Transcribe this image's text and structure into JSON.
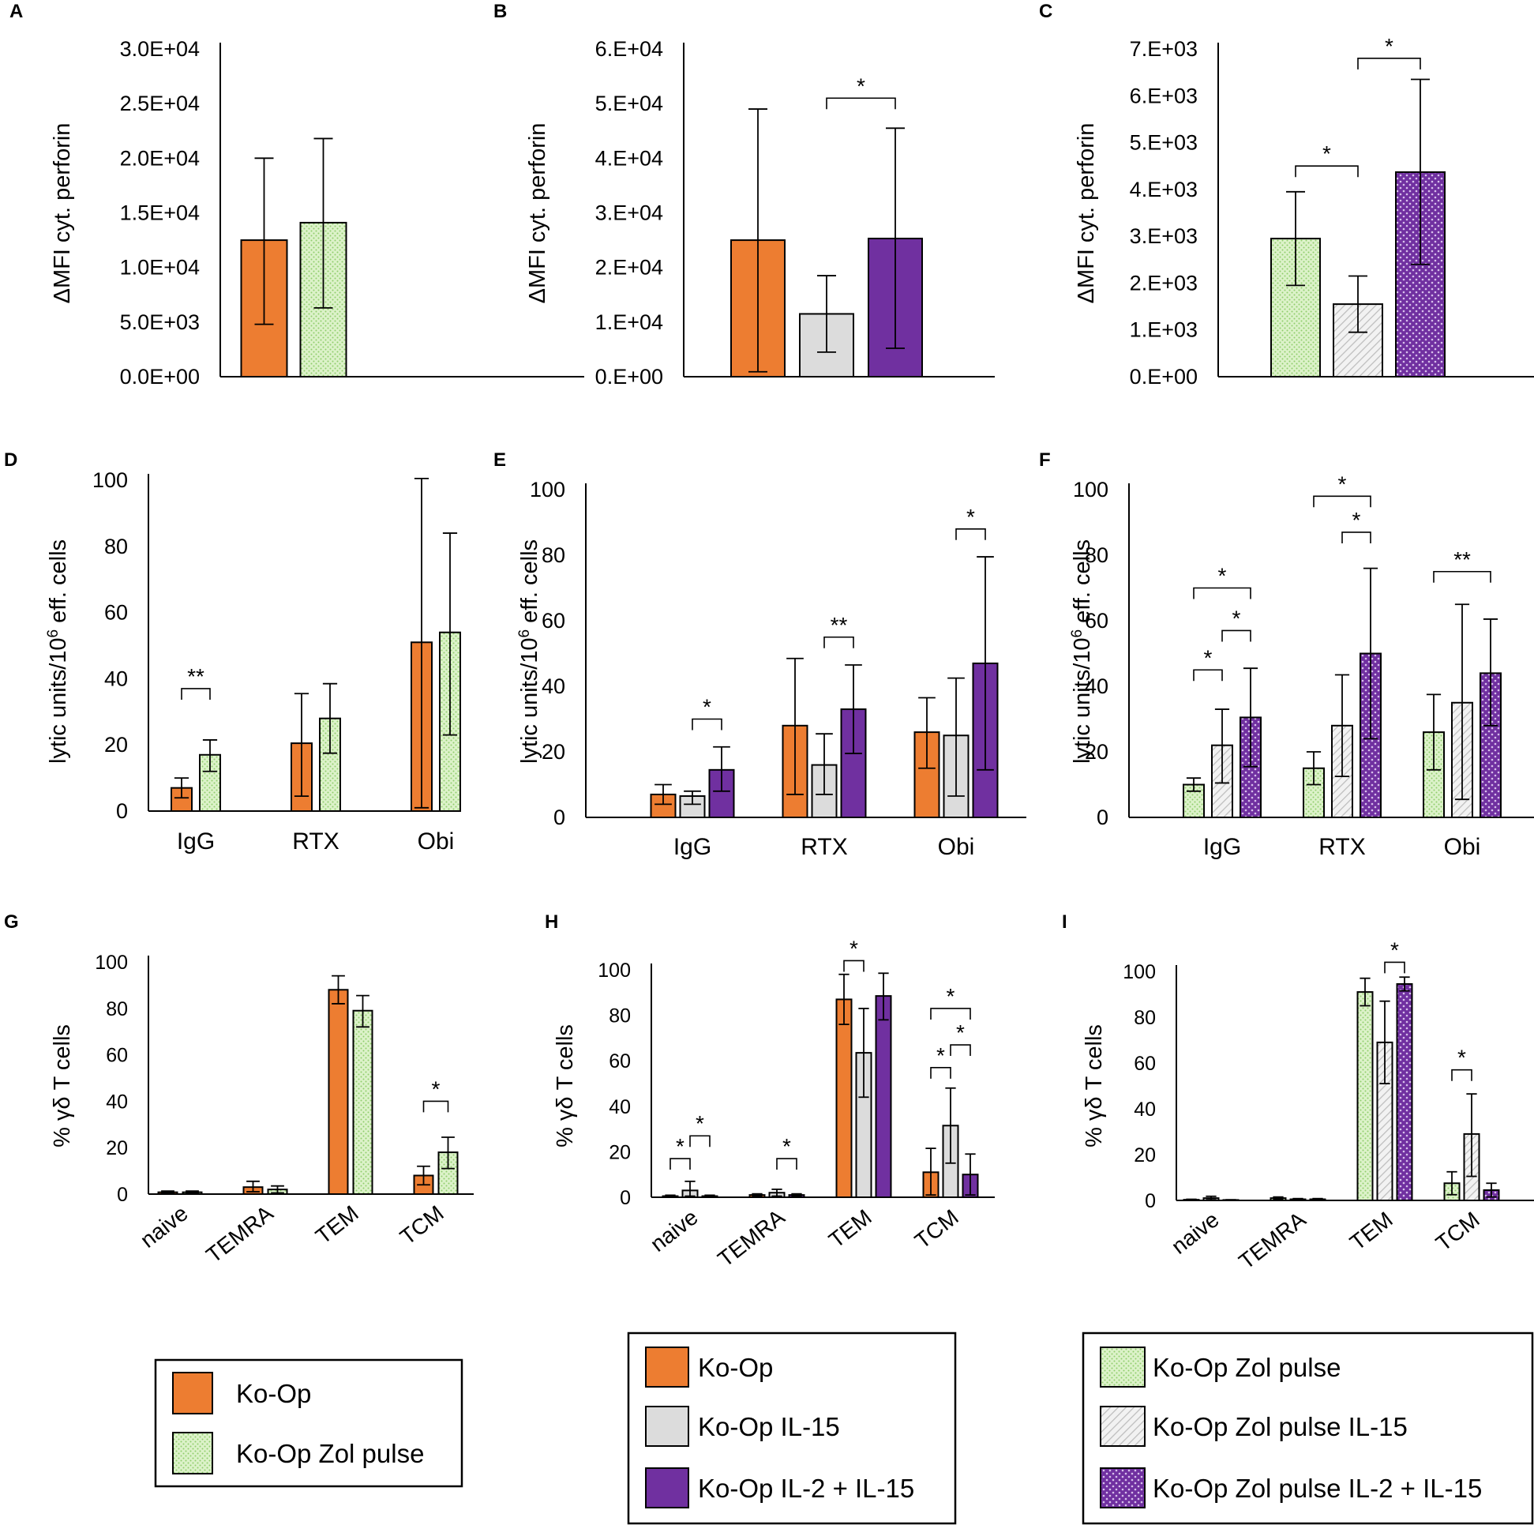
{
  "series_styles": {
    "ko_op": {
      "color": "#ed7d31",
      "pattern": "solid"
    },
    "ko_op_zol": {
      "color": "#d6f0c2",
      "pattern": "green-dots"
    },
    "ko_op_il15": {
      "color": "#dcdcdc",
      "pattern": "solid"
    },
    "ko_op_il2_il15": {
      "color": "#7030a0",
      "pattern": "solid"
    },
    "ko_op_zol_il15": {
      "color": "#e6e6e6",
      "pattern": "grey-diag"
    },
    "ko_op_zol_il2_il15": {
      "color": "#7030a0",
      "pattern": "purple-cross"
    }
  },
  "legends": [
    {
      "items": [
        {
          "label": "Ko-Op",
          "style": "ko_op"
        },
        {
          "label": "Ko-Op Zol pulse",
          "style": "ko_op_zol"
        }
      ]
    },
    {
      "items": [
        {
          "label": "Ko-Op",
          "style": "ko_op"
        },
        {
          "label": "Ko-Op IL-15",
          "style": "ko_op_il15"
        },
        {
          "label": "Ko-Op IL-2 + IL-15",
          "style": "ko_op_il2_il15"
        }
      ]
    },
    {
      "items": [
        {
          "label": "Ko-Op Zol pulse",
          "style": "ko_op_zol"
        },
        {
          "label": "Ko-Op Zol pulse IL-15",
          "style": "ko_op_zol_il15"
        },
        {
          "label": "Ko-Op Zol pulse IL-2 + IL-15",
          "style": "ko_op_zol_il2_il15"
        }
      ]
    }
  ],
  "chart_data": [
    {
      "panel": "A",
      "type": "bar",
      "ylabel": "ΔMFI cyt. perforin",
      "ylim": [
        0,
        30000
      ],
      "yticks": [
        {
          "v": 0,
          "t": "0.0E+00"
        },
        {
          "v": 5000,
          "t": "5.0E+03"
        },
        {
          "v": 10000,
          "t": "1.0E+04"
        },
        {
          "v": 15000,
          "t": "1.5E+04"
        },
        {
          "v": 20000,
          "t": "2.0E+04"
        },
        {
          "v": 25000,
          "t": "2.5E+04"
        },
        {
          "v": 30000,
          "t": "3.0E+04"
        }
      ],
      "categories": [
        ""
      ],
      "series": [
        {
          "name": "Ko-Op",
          "style": "ko_op",
          "values": [
            12500
          ],
          "err_low": [
            4800
          ],
          "err_high": [
            20000
          ]
        },
        {
          "name": "Ko-Op Zol pulse",
          "style": "ko_op_zol",
          "values": [
            14100
          ],
          "err_low": [
            6300
          ],
          "err_high": [
            21800
          ]
        }
      ],
      "sig": []
    },
    {
      "panel": "B",
      "type": "bar",
      "ylabel": "ΔMFI cyt. perforin",
      "ylim": [
        0,
        60000
      ],
      "yticks": [
        {
          "v": 0,
          "t": "0.E+00"
        },
        {
          "v": 10000,
          "t": "1.E+04"
        },
        {
          "v": 20000,
          "t": "2.E+04"
        },
        {
          "v": 30000,
          "t": "3.E+04"
        },
        {
          "v": 40000,
          "t": "4.E+04"
        },
        {
          "v": 50000,
          "t": "5.E+04"
        },
        {
          "v": 60000,
          "t": "6.E+04"
        }
      ],
      "categories": [
        ""
      ],
      "series": [
        {
          "name": "Ko-Op",
          "style": "ko_op",
          "values": [
            25000
          ],
          "err_low": [
            900
          ],
          "err_high": [
            49000
          ]
        },
        {
          "name": "Ko-Op IL-15",
          "style": "ko_op_il15",
          "values": [
            11500
          ],
          "err_low": [
            4500
          ],
          "err_high": [
            18500
          ]
        },
        {
          "name": "Ko-Op IL-2 + IL-15",
          "style": "ko_op_il2_il15",
          "values": [
            25300
          ],
          "err_low": [
            5200
          ],
          "err_high": [
            45500
          ]
        }
      ],
      "sig": [
        {
          "from": [
            0,
            1
          ],
          "to": [
            0,
            2
          ],
          "y": 51000,
          "label": "*"
        }
      ]
    },
    {
      "panel": "C",
      "type": "bar",
      "ylabel": "ΔMFI cyt. perforin",
      "ylim": [
        0,
        7000
      ],
      "yticks": [
        {
          "v": 0,
          "t": "0.E+00"
        },
        {
          "v": 1000,
          "t": "1.E+03"
        },
        {
          "v": 2000,
          "t": "2.E+03"
        },
        {
          "v": 3000,
          "t": "3.E+03"
        },
        {
          "v": 4000,
          "t": "4.E+03"
        },
        {
          "v": 5000,
          "t": "5.E+03"
        },
        {
          "v": 6000,
          "t": "6.E+03"
        },
        {
          "v": 7000,
          "t": "7.E+03"
        }
      ],
      "categories": [
        ""
      ],
      "series": [
        {
          "name": "Ko-Op Zol pulse",
          "style": "ko_op_zol",
          "values": [
            2950
          ],
          "err_low": [
            1950
          ],
          "err_high": [
            3950
          ]
        },
        {
          "name": "Ko-Op Zol pulse IL-15",
          "style": "ko_op_zol_il15",
          "values": [
            1550
          ],
          "err_low": [
            950
          ],
          "err_high": [
            2150
          ]
        },
        {
          "name": "Ko-Op Zol pulse IL-2 + IL-15",
          "style": "ko_op_zol_il2_il15",
          "values": [
            4370
          ],
          "err_low": [
            2400
          ],
          "err_high": [
            6350
          ]
        }
      ],
      "sig": [
        {
          "from": [
            0,
            0
          ],
          "to": [
            0,
            1
          ],
          "y": 4500,
          "label": "*"
        },
        {
          "from": [
            0,
            1
          ],
          "to": [
            0,
            2
          ],
          "y": 6800,
          "label": "*"
        }
      ]
    },
    {
      "panel": "D",
      "type": "bar",
      "ylabel": "lytic units/10^6 eff. cells",
      "ylim": [
        0,
        100
      ],
      "yticks": [
        {
          "v": 0,
          "t": "0"
        },
        {
          "v": 20,
          "t": "20"
        },
        {
          "v": 40,
          "t": "40"
        },
        {
          "v": 60,
          "t": "60"
        },
        {
          "v": 80,
          "t": "80"
        },
        {
          "v": 100,
          "t": "100"
        }
      ],
      "categories": [
        "IgG",
        "RTX",
        "Obi"
      ],
      "series": [
        {
          "name": "Ko-Op",
          "style": "ko_op",
          "values": [
            7,
            20.5,
            51
          ],
          "err_low": [
            4,
            4.5,
            1
          ],
          "err_high": [
            10,
            35.5,
            100.5
          ]
        },
        {
          "name": "Ko-Op Zol pulse",
          "style": "ko_op_zol",
          "values": [
            17,
            28,
            54
          ],
          "err_low": [
            12,
            17.5,
            23
          ],
          "err_high": [
            21.5,
            38.5,
            84
          ]
        }
      ],
      "sig": [
        {
          "from": [
            0,
            0
          ],
          "to": [
            0,
            1
          ],
          "y": 37,
          "label": "**"
        }
      ]
    },
    {
      "panel": "E",
      "type": "bar",
      "ylabel": "lytic units/10^6 eff. cells",
      "ylim": [
        0,
        100
      ],
      "yticks": [
        {
          "v": 0,
          "t": "0"
        },
        {
          "v": 20,
          "t": "20"
        },
        {
          "v": 40,
          "t": "40"
        },
        {
          "v": 60,
          "t": "60"
        },
        {
          "v": 80,
          "t": "80"
        },
        {
          "v": 100,
          "t": "100"
        }
      ],
      "categories": [
        "IgG",
        "RTX",
        "Obi"
      ],
      "series": [
        {
          "name": "Ko-Op",
          "style": "ko_op",
          "values": [
            7,
            28,
            26
          ],
          "err_low": [
            4,
            7,
            15
          ],
          "err_high": [
            10,
            48.5,
            36.5
          ]
        },
        {
          "name": "Ko-Op IL-15",
          "style": "ko_op_il15",
          "values": [
            6.5,
            16,
            25
          ],
          "err_low": [
            4,
            7,
            6.5
          ],
          "err_high": [
            8,
            25.5,
            42.5
          ]
        },
        {
          "name": "Ko-Op IL-2 + IL-15",
          "style": "ko_op_il2_il15",
          "values": [
            14.5,
            33,
            47
          ],
          "err_low": [
            8,
            19.5,
            14.5
          ],
          "err_high": [
            21.5,
            46.5,
            79.5
          ]
        }
      ],
      "sig": [
        {
          "from": [
            0,
            1
          ],
          "to": [
            0,
            2
          ],
          "y": 30,
          "label": "*"
        },
        {
          "from": [
            1,
            1
          ],
          "to": [
            1,
            2
          ],
          "y": 55,
          "label": "**"
        },
        {
          "from": [
            2,
            1
          ],
          "to": [
            2,
            2
          ],
          "y": 88,
          "label": "*"
        }
      ]
    },
    {
      "panel": "F",
      "type": "bar",
      "ylabel": "lytic units/10^6 eff. cells",
      "ylim": [
        0,
        100
      ],
      "yticks": [
        {
          "v": 0,
          "t": "0"
        },
        {
          "v": 20,
          "t": "20"
        },
        {
          "v": 40,
          "t": "40"
        },
        {
          "v": 60,
          "t": "60"
        },
        {
          "v": 80,
          "t": "80"
        },
        {
          "v": 100,
          "t": "100"
        }
      ],
      "categories": [
        "IgG",
        "RTX",
        "Obi"
      ],
      "series": [
        {
          "name": "Ko-Op Zol pulse",
          "style": "ko_op_zol",
          "values": [
            10,
            15,
            26
          ],
          "err_low": [
            8,
            10,
            14.5
          ],
          "err_high": [
            12,
            20,
            37.5
          ]
        },
        {
          "name": "Ko-Op Zol pulse IL-15",
          "style": "ko_op_zol_il15",
          "values": [
            22,
            28,
            35
          ],
          "err_low": [
            10.5,
            12.5,
            5.5
          ],
          "err_high": [
            33,
            43.5,
            65
          ]
        },
        {
          "name": "Ko-Op Zol pulse IL-2 + IL-15",
          "style": "ko_op_zol_il2_il15",
          "values": [
            30.5,
            50,
            44
          ],
          "err_low": [
            15.5,
            24,
            28
          ],
          "err_high": [
            45.5,
            76,
            60.5
          ]
        }
      ],
      "sig": [
        {
          "from": [
            0,
            0
          ],
          "to": [
            0,
            1
          ],
          "y": 45,
          "label": "*"
        },
        {
          "from": [
            0,
            1
          ],
          "to": [
            0,
            2
          ],
          "y": 57,
          "label": "*"
        },
        {
          "from": [
            0,
            0
          ],
          "to": [
            0,
            2
          ],
          "y": 70,
          "label": "*"
        },
        {
          "from": [
            1,
            1
          ],
          "to": [
            1,
            2
          ],
          "y": 87,
          "label": "*"
        },
        {
          "from": [
            1,
            0
          ],
          "to": [
            1,
            2
          ],
          "y": 98,
          "label": "*"
        },
        {
          "from": [
            2,
            0
          ],
          "to": [
            2,
            2
          ],
          "y": 75,
          "label": "**"
        }
      ]
    },
    {
      "panel": "G",
      "type": "bar",
      "ylabel": "% γδ T cells",
      "ylim": [
        0,
        100
      ],
      "yticks": [
        {
          "v": 0,
          "t": "0"
        },
        {
          "v": 20,
          "t": "20"
        },
        {
          "v": 40,
          "t": "40"
        },
        {
          "v": 60,
          "t": "60"
        },
        {
          "v": 80,
          "t": "80"
        },
        {
          "v": 100,
          "t": "100"
        }
      ],
      "categories": [
        "naive",
        "TEMRA",
        "TEM",
        "TCM"
      ],
      "series": [
        {
          "name": "Ko-Op",
          "style": "ko_op",
          "values": [
            0.8,
            3,
            88,
            8
          ],
          "err_low": [
            0.3,
            1,
            82,
            4
          ],
          "err_high": [
            1.3,
            5.5,
            94,
            12
          ]
        },
        {
          "name": "Ko-Op Zol pulse",
          "style": "ko_op_zol",
          "values": [
            0.8,
            2,
            79,
            18
          ],
          "err_low": [
            0.3,
            0.5,
            72,
            11
          ],
          "err_high": [
            1.3,
            3.5,
            85.5,
            24.5
          ]
        }
      ],
      "sig": [
        {
          "from": [
            3,
            0
          ],
          "to": [
            3,
            1
          ],
          "y": 40,
          "label": "*"
        }
      ]
    },
    {
      "panel": "H",
      "type": "bar",
      "ylabel": "% γδ T cells",
      "ylim": [
        0,
        100
      ],
      "yticks": [
        {
          "v": 0,
          "t": "0"
        },
        {
          "v": 20,
          "t": "20"
        },
        {
          "v": 40,
          "t": "40"
        },
        {
          "v": 60,
          "t": "60"
        },
        {
          "v": 80,
          "t": "80"
        },
        {
          "v": 100,
          "t": "100"
        }
      ],
      "categories": [
        "naive",
        "TEMRA",
        "TEM",
        "TCM"
      ],
      "series": [
        {
          "name": "Ko-Op",
          "style": "ko_op",
          "values": [
            0.5,
            1,
            87,
            11
          ],
          "err_low": [
            0.1,
            0.5,
            76,
            1
          ],
          "err_high": [
            0.9,
            1.5,
            98,
            21.5
          ]
        },
        {
          "name": "Ko-Op IL-15",
          "style": "ko_op_il15",
          "values": [
            3,
            2,
            63.5,
            31.5
          ],
          "err_low": [
            0.5,
            0.5,
            44,
            15
          ],
          "err_high": [
            7,
            3.5,
            83,
            48
          ]
        },
        {
          "name": "Ko-Op IL-2 + IL-15",
          "style": "ko_op_il2_il15",
          "values": [
            0.5,
            1,
            88.5,
            10
          ],
          "err_low": [
            0.1,
            0.5,
            78,
            1
          ],
          "err_high": [
            0.9,
            1.5,
            98.5,
            19
          ]
        }
      ],
      "sig": [
        {
          "from": [
            0,
            0
          ],
          "to": [
            0,
            1
          ],
          "y": 17,
          "label": "*"
        },
        {
          "from": [
            0,
            1
          ],
          "to": [
            0,
            2
          ],
          "y": 27,
          "label": "*"
        },
        {
          "from": [
            1,
            1
          ],
          "to": [
            1,
            2
          ],
          "y": 17,
          "label": "*"
        },
        {
          "from": [
            2,
            0
          ],
          "to": [
            2,
            1
          ],
          "y": 104,
          "label": "*"
        },
        {
          "from": [
            3,
            0
          ],
          "to": [
            3,
            1
          ],
          "y": 57,
          "label": "*"
        },
        {
          "from": [
            3,
            1
          ],
          "to": [
            3,
            2
          ],
          "y": 67,
          "label": "*"
        },
        {
          "from": [
            3,
            0
          ],
          "to": [
            3,
            2
          ],
          "y": 83,
          "label": "*"
        }
      ]
    },
    {
      "panel": "I",
      "type": "bar",
      "ylabel": "% γδ T cells",
      "ylim": [
        0,
        100
      ],
      "yticks": [
        {
          "v": 0,
          "t": "0"
        },
        {
          "v": 20,
          "t": "20"
        },
        {
          "v": 40,
          "t": "40"
        },
        {
          "v": 60,
          "t": "60"
        },
        {
          "v": 80,
          "t": "80"
        },
        {
          "v": 100,
          "t": "100"
        }
      ],
      "categories": [
        "naive",
        "TEMRA",
        "TEM",
        "TCM"
      ],
      "series": [
        {
          "name": "Ko-Op Zol pulse",
          "style": "ko_op_zol",
          "values": [
            0.3,
            1,
            91,
            7.5
          ],
          "err_low": [
            0.1,
            0.5,
            85,
            2.5
          ],
          "err_high": [
            0.5,
            1.5,
            97,
            12.5
          ]
        },
        {
          "name": "Ko-Op Zol pulse IL-15",
          "style": "ko_op_zol_il15",
          "values": [
            1,
            0.5,
            69,
            29
          ],
          "err_low": [
            0.3,
            0.2,
            51,
            10.5
          ],
          "err_high": [
            1.8,
            0.8,
            87,
            46.5
          ]
        },
        {
          "name": "Ko-Op Zol pulse IL-2 + IL-15",
          "style": "ko_op_zol_il2_il15",
          "values": [
            0.2,
            0.5,
            94.5,
            4.5
          ],
          "err_low": [
            0.1,
            0.2,
            91.5,
            1.5
          ],
          "err_high": [
            0.3,
            0.8,
            97.5,
            7.5
          ]
        }
      ],
      "sig": [
        {
          "from": [
            2,
            1
          ],
          "to": [
            2,
            2
          ],
          "y": 104,
          "label": "*"
        },
        {
          "from": [
            3,
            0
          ],
          "to": [
            3,
            1
          ],
          "y": 57,
          "label": "*"
        }
      ]
    }
  ]
}
